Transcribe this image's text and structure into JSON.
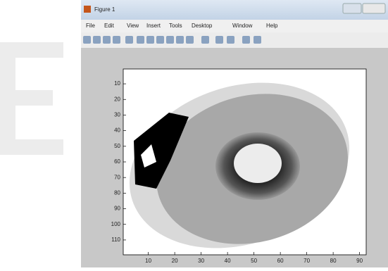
{
  "window": {
    "title": "Figure 1",
    "menu": [
      "File",
      "Edit",
      "View",
      "Insert",
      "Tools",
      "Desktop",
      "Window",
      "Help"
    ]
  },
  "axes": {
    "xlim": [
      0.5,
      92.5
    ],
    "ylim": [
      0.5,
      119.5
    ],
    "ydir": "reverse",
    "xticks": [
      10,
      20,
      30,
      40,
      50,
      60,
      70,
      80,
      90
    ],
    "yticks": [
      10,
      20,
      30,
      40,
      50,
      60,
      70,
      80,
      90,
      100,
      110
    ]
  }
}
